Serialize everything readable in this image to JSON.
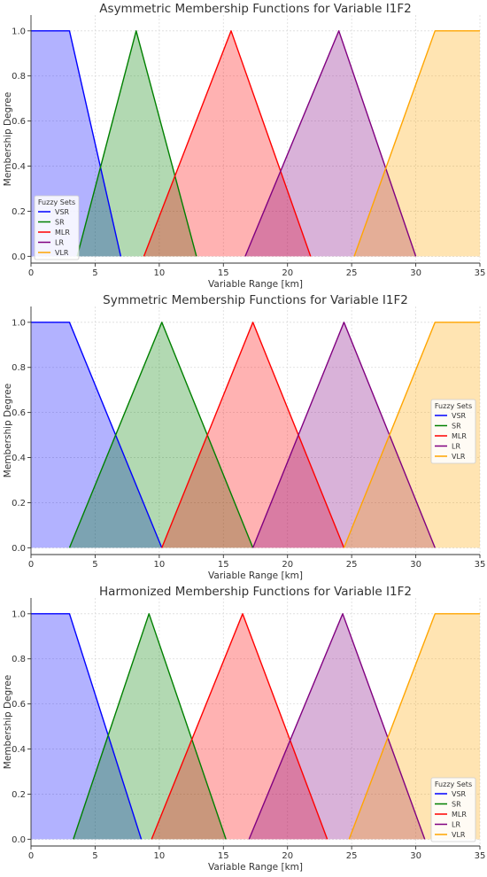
{
  "chart_data": [
    {
      "type": "area",
      "title": "Asymmetric Membership Functions for Variable I1F2",
      "xlabel": "Variable Range [km]",
      "ylabel": "Membership Degree",
      "xlim": [
        0,
        35
      ],
      "ylim": [
        -0.03,
        1.07
      ],
      "xticks": [
        0,
        5,
        10,
        15,
        20,
        25,
        30,
        35
      ],
      "yticks": [
        0.0,
        0.2,
        0.4,
        0.6,
        0.8,
        1.0
      ],
      "grid": true,
      "legend_title": "Fuzzy Sets",
      "legend_position": "lower-left",
      "series": [
        {
          "name": "VSR",
          "color": "#0000ff",
          "points": [
            [
              0,
              1
            ],
            [
              3,
              1
            ],
            [
              7,
              0
            ]
          ]
        },
        {
          "name": "SR",
          "color": "#008000",
          "points": [
            [
              3.6,
              0
            ],
            [
              8.2,
              1
            ],
            [
              12.9,
              0
            ]
          ]
        },
        {
          "name": "MLR",
          "color": "#ff0000",
          "points": [
            [
              8.8,
              0
            ],
            [
              15.6,
              1
            ],
            [
              21.8,
              0
            ]
          ]
        },
        {
          "name": "LR",
          "color": "#800080",
          "points": [
            [
              16.7,
              0
            ],
            [
              24,
              1
            ],
            [
              30,
              0
            ]
          ]
        },
        {
          "name": "VLR",
          "color": "#ffa500",
          "points": [
            [
              25.2,
              0
            ],
            [
              31.5,
              1
            ],
            [
              35,
              1
            ]
          ]
        }
      ]
    },
    {
      "type": "area",
      "title": "Symmetric Membership Functions for Variable I1F2",
      "xlabel": "Variable Range [km]",
      "ylabel": "Membership Degree",
      "xlim": [
        0,
        35
      ],
      "ylim": [
        -0.03,
        1.07
      ],
      "xticks": [
        0,
        5,
        10,
        15,
        20,
        25,
        30,
        35
      ],
      "yticks": [
        0.0,
        0.2,
        0.4,
        0.6,
        0.8,
        1.0
      ],
      "grid": true,
      "legend_title": "Fuzzy Sets",
      "legend_position": "center-right",
      "series": [
        {
          "name": "VSR",
          "color": "#0000ff",
          "points": [
            [
              0,
              1
            ],
            [
              3,
              1
            ],
            [
              10.2,
              0
            ]
          ]
        },
        {
          "name": "SR",
          "color": "#008000",
          "points": [
            [
              3,
              0
            ],
            [
              10.2,
              1
            ],
            [
              17.3,
              0
            ]
          ]
        },
        {
          "name": "MLR",
          "color": "#ff0000",
          "points": [
            [
              10.2,
              0
            ],
            [
              17.3,
              1
            ],
            [
              24.4,
              0
            ]
          ]
        },
        {
          "name": "LR",
          "color": "#800080",
          "points": [
            [
              17.3,
              0
            ],
            [
              24.4,
              1
            ],
            [
              31.5,
              0
            ]
          ]
        },
        {
          "name": "VLR",
          "color": "#ffa500",
          "points": [
            [
              24.4,
              0
            ],
            [
              31.5,
              1
            ],
            [
              35,
              1
            ]
          ]
        }
      ]
    },
    {
      "type": "area",
      "title": "Harmonized Membership Functions for Variable I1F2",
      "xlabel": "Variable Range [km]",
      "ylabel": "Membership Degree",
      "xlim": [
        0,
        35
      ],
      "ylim": [
        -0.03,
        1.07
      ],
      "xticks": [
        0,
        5,
        10,
        15,
        20,
        25,
        30,
        35
      ],
      "yticks": [
        0.0,
        0.2,
        0.4,
        0.6,
        0.8,
        1.0
      ],
      "grid": true,
      "legend_title": "Fuzzy Sets",
      "legend_position": "lower-right",
      "series": [
        {
          "name": "VSR",
          "color": "#0000ff",
          "points": [
            [
              0,
              1
            ],
            [
              3,
              1
            ],
            [
              8.6,
              0
            ]
          ]
        },
        {
          "name": "SR",
          "color": "#008000",
          "points": [
            [
              3.3,
              0
            ],
            [
              9.2,
              1
            ],
            [
              15.2,
              0
            ]
          ]
        },
        {
          "name": "MLR",
          "color": "#ff0000",
          "points": [
            [
              9.4,
              0
            ],
            [
              16.5,
              1
            ],
            [
              23.1,
              0
            ]
          ]
        },
        {
          "name": "LR",
          "color": "#800080",
          "points": [
            [
              17,
              0
            ],
            [
              24.3,
              1
            ],
            [
              30.7,
              0
            ]
          ]
        },
        {
          "name": "VLR",
          "color": "#ffa500",
          "points": [
            [
              24.8,
              0
            ],
            [
              31.5,
              1
            ],
            [
              35,
              1
            ]
          ]
        }
      ]
    }
  ]
}
